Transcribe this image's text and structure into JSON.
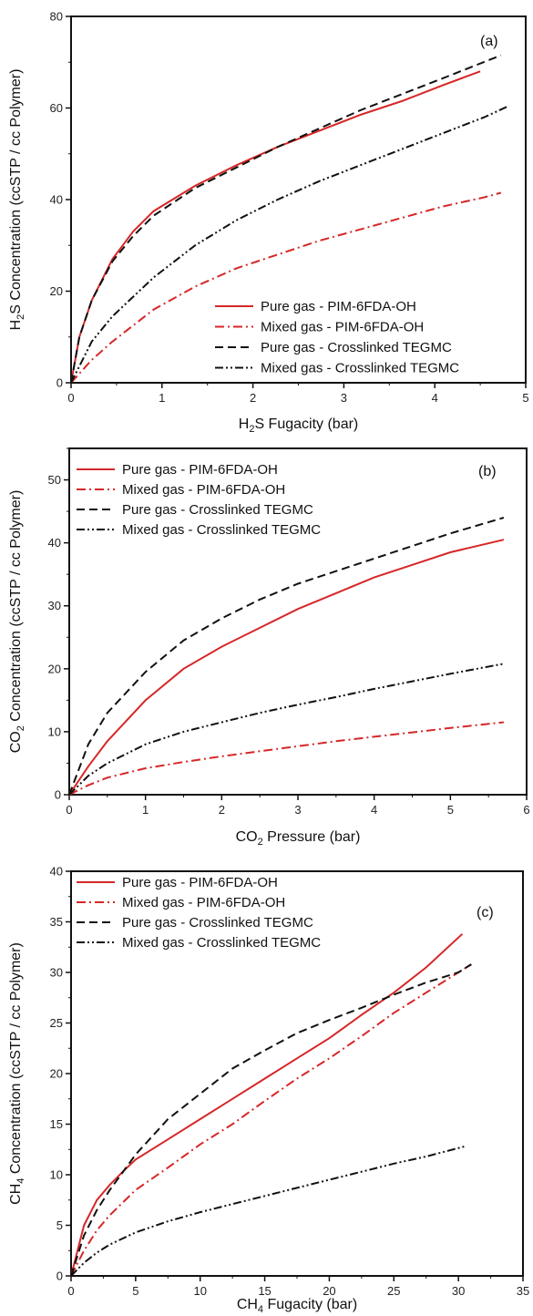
{
  "chart_data": [
    {
      "type": "line",
      "panel_label": "(a)",
      "xlabel_parts": [
        "H",
        "2",
        "S Fugacity (bar)"
      ],
      "ylabel_parts": [
        "H",
        "2",
        "S Concentration (ccSTP / cc Polymer)"
      ],
      "xlim": [
        0,
        5.5
      ],
      "ylim": [
        0,
        80
      ],
      "xticks": [
        "0",
        "1",
        "2",
        "3",
        "4",
        "5"
      ],
      "yticks": [
        "0",
        "20",
        "40",
        "60",
        "80"
      ],
      "legend_position": "bottom-right",
      "series": [
        {
          "name": "Pure gas - PIM-6FDA-OH",
          "color": "#d62728",
          "dash": "solid",
          "x": [
            0,
            0.1,
            0.25,
            0.5,
            0.75,
            1.0,
            1.5,
            2.0,
            2.5,
            3.0,
            3.5,
            4.0,
            4.5,
            4.95
          ],
          "y": [
            0,
            10,
            18,
            27,
            33,
            37.5,
            43,
            47.5,
            51.5,
            55,
            58.5,
            61.5,
            65,
            68
          ]
        },
        {
          "name": "Mixed gas - PIM-6FDA-OH",
          "color": "#d62728",
          "dash": "dashdot",
          "x": [
            0,
            0.25,
            0.5,
            1.0,
            1.5,
            2.0,
            2.5,
            3.0,
            3.5,
            4.0,
            4.5,
            5.0,
            5.2
          ],
          "y": [
            0,
            5,
            9,
            16,
            21,
            25,
            28,
            31,
            33.5,
            36,
            38.5,
            40.5,
            41.5
          ]
        },
        {
          "name": "Pure gas - Crosslinked TEGMC",
          "color": "#111111",
          "dash": "dashed",
          "x": [
            0,
            0.1,
            0.25,
            0.5,
            0.75,
            1.0,
            1.5,
            2.0,
            2.5,
            3.0,
            3.5,
            4.0,
            4.5,
            5.2
          ],
          "y": [
            0,
            10,
            18,
            26.5,
            32,
            36.5,
            42.5,
            47,
            51.5,
            55.5,
            59.5,
            63,
            66.5,
            71.5
          ]
        },
        {
          "name": "Mixed gas - Crosslinked TEGMC",
          "color": "#111111",
          "dash": "dashdotdot",
          "x": [
            0,
            0.25,
            0.5,
            1.0,
            1.5,
            2.0,
            2.5,
            3.0,
            3.5,
            4.0,
            4.5,
            5.0,
            5.3
          ],
          "y": [
            0,
            9,
            14.5,
            23,
            30,
            35.5,
            40,
            44,
            47.5,
            51,
            54.5,
            58,
            60.5
          ]
        }
      ]
    },
    {
      "type": "line",
      "panel_label": "(b)",
      "xlabel_parts": [
        "CO",
        "2",
        " Pressure (bar)"
      ],
      "ylabel_parts": [
        "CO",
        "2",
        " Concentration (ccSTP / cc Polymer)"
      ],
      "xlim": [
        0,
        6
      ],
      "ylim": [
        0,
        55
      ],
      "xticks": [
        "0",
        "1",
        "2",
        "3",
        "4",
        "5",
        "6"
      ],
      "yticks": [
        "0",
        "10",
        "20",
        "30",
        "40",
        "50"
      ],
      "legend_position": "top-left",
      "series": [
        {
          "name": "Pure gas - PIM-6FDA-OH",
          "color": "#d62728",
          "dash": "solid",
          "x": [
            0,
            0.25,
            0.5,
            1.0,
            1.5,
            2.0,
            2.5,
            3.0,
            3.5,
            4.0,
            4.5,
            5.0,
            5.7
          ],
          "y": [
            0,
            4.5,
            8.5,
            15,
            20,
            23.5,
            26.5,
            29.5,
            32,
            34.5,
            36.5,
            38.5,
            40.5
          ]
        },
        {
          "name": "Mixed gas - PIM-6FDA-OH",
          "color": "#d62728",
          "dash": "dashdot",
          "x": [
            0,
            0.25,
            0.5,
            1.0,
            1.5,
            2.0,
            2.5,
            3.0,
            3.5,
            4.0,
            4.5,
            5.0,
            5.7
          ],
          "y": [
            0,
            1.5,
            2.7,
            4.2,
            5.2,
            6.1,
            6.9,
            7.7,
            8.5,
            9.2,
            9.9,
            10.6,
            11.5
          ]
        },
        {
          "name": "Pure gas - Crosslinked TEGMC",
          "color": "#111111",
          "dash": "dashed",
          "x": [
            0,
            0.25,
            0.5,
            1.0,
            1.5,
            2.0,
            2.5,
            3.0,
            3.5,
            4.0,
            4.5,
            5.0,
            5.7
          ],
          "y": [
            0,
            8,
            13,
            19.5,
            24.5,
            28,
            31,
            33.5,
            35.5,
            37.5,
            39.5,
            41.5,
            44
          ]
        },
        {
          "name": "Mixed gas - Crosslinked TEGMC",
          "color": "#111111",
          "dash": "dashdotdot",
          "x": [
            0,
            0.25,
            0.5,
            1.0,
            1.5,
            2.0,
            2.5,
            3.0,
            3.5,
            4.0,
            4.5,
            5.0,
            5.7
          ],
          "y": [
            0,
            3,
            5,
            8,
            10,
            11.5,
            13,
            14.3,
            15.5,
            16.8,
            18,
            19.2,
            20.8
          ]
        }
      ]
    },
    {
      "type": "line",
      "panel_label": "(c)",
      "xlabel_parts": [
        "CH",
        "4",
        " Fugacity (bar)"
      ],
      "ylabel_parts": [
        "CH",
        "4",
        " Concentration (ccSTP / cc Polymer)"
      ],
      "xlim": [
        0,
        35
      ],
      "ylim": [
        0,
        40
      ],
      "xticks": [
        "0",
        "5",
        "10",
        "15",
        "20",
        "25",
        "30",
        "35"
      ],
      "yticks": [
        "0",
        "5",
        "10",
        "15",
        "20",
        "25",
        "30",
        "35",
        "40"
      ],
      "legend_position": "top-left",
      "series": [
        {
          "name": "Pure gas - PIM-6FDA-OH",
          "color": "#d62728",
          "dash": "solid",
          "x": [
            0,
            1,
            2,
            3,
            4,
            5,
            7.5,
            10,
            12.5,
            15,
            17.5,
            20,
            22.5,
            25,
            27.5,
            30.3
          ],
          "y": [
            0,
            5,
            7.5,
            9,
            10.3,
            11.5,
            13.5,
            15.5,
            17.5,
            19.5,
            21.5,
            23.5,
            25.8,
            28,
            30.5,
            33.8
          ]
        },
        {
          "name": "Mixed gas - PIM-6FDA-OH",
          "color": "#d62728",
          "dash": "dashdot",
          "x": [
            0,
            1,
            2,
            3,
            5,
            7.5,
            10,
            12.5,
            15,
            17.5,
            20,
            22.5,
            25,
            27.5,
            31
          ],
          "y": [
            0,
            2.5,
            4.5,
            6,
            8.5,
            10.7,
            13,
            15,
            17.3,
            19.5,
            21.5,
            23.7,
            26,
            28,
            30.8
          ]
        },
        {
          "name": "Pure gas - Crosslinked TEGMC",
          "color": "#111111",
          "dash": "dashed",
          "x": [
            0,
            1,
            2,
            3,
            5,
            7.5,
            10,
            12.5,
            15,
            17.5,
            20,
            22.5,
            25,
            27.5,
            30,
            31
          ],
          "y": [
            0,
            4,
            6.5,
            8.5,
            12,
            15.5,
            18,
            20.5,
            22.3,
            24,
            25.3,
            26.5,
            27.8,
            29,
            30,
            30.8
          ]
        },
        {
          "name": "Mixed gas - Crosslinked TEGMC",
          "color": "#111111",
          "dash": "dashdotdot",
          "x": [
            0,
            1,
            2,
            3,
            5,
            7.5,
            10,
            12.5,
            15,
            17.5,
            20,
            22.5,
            25,
            27.5,
            30.5
          ],
          "y": [
            0,
            1.3,
            2.3,
            3.1,
            4.3,
            5.4,
            6.3,
            7.1,
            7.9,
            8.7,
            9.5,
            10.3,
            11.1,
            11.8,
            12.8
          ]
        }
      ]
    }
  ]
}
